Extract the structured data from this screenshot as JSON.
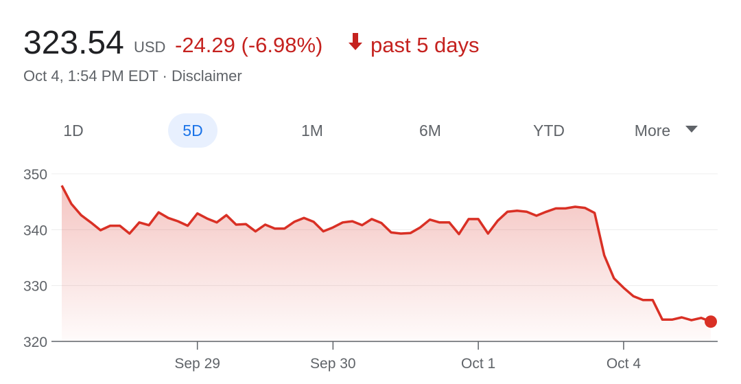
{
  "header": {
    "price": "323.54",
    "currency": "USD",
    "change": "-24.29 (-6.98%)",
    "period": "past 5 days",
    "timestamp": "Oct 4, 1:54 PM EDT · Disclaimer"
  },
  "tabs": [
    "1D",
    "5D",
    "1M",
    "6M",
    "YTD",
    "More"
  ],
  "selected_tab": 1,
  "chart_data": {
    "type": "line",
    "color": "#d93025",
    "categories": [
      null,
      null,
      null,
      null,
      null,
      null,
      null,
      null,
      null,
      null,
      null,
      null,
      null,
      null,
      "Sep 29",
      null,
      null,
      null,
      null,
      null,
      null,
      null,
      null,
      null,
      null,
      null,
      null,
      null,
      "Sep 30",
      null,
      null,
      null,
      null,
      null,
      null,
      null,
      null,
      null,
      null,
      null,
      null,
      null,
      null,
      "Oct 1",
      null,
      null,
      null,
      null,
      null,
      null,
      null,
      null,
      null,
      null,
      null,
      null,
      null,
      null,
      "Oct 4",
      null,
      null,
      null,
      null,
      null,
      null,
      null,
      null,
      null
    ],
    "values": [
      347.9,
      344.6,
      342.6,
      341.3,
      339.9,
      340.7,
      340.7,
      339.3,
      341.3,
      340.8,
      343.1,
      342.1,
      341.5,
      340.7,
      342.9,
      342.0,
      341.3,
      342.6,
      340.9,
      341.0,
      339.7,
      340.9,
      340.2,
      340.2,
      341.4,
      342.1,
      341.4,
      339.7,
      340.4,
      341.3,
      341.5,
      340.8,
      341.9,
      341.2,
      339.5,
      339.3,
      339.4,
      340.4,
      341.8,
      341.3,
      341.3,
      339.2,
      341.9,
      341.9,
      339.3,
      341.6,
      343.2,
      343.4,
      343.2,
      342.5,
      343.2,
      343.8,
      343.8,
      344.1,
      343.9,
      343.0,
      335.4,
      331.3,
      329.6,
      328.1,
      327.4,
      327.4,
      323.9,
      323.9,
      324.3,
      323.8,
      324.2,
      323.54
    ],
    "ylim": [
      320,
      350
    ],
    "yticks": [
      320,
      330,
      340,
      350
    ],
    "grid": true
  }
}
